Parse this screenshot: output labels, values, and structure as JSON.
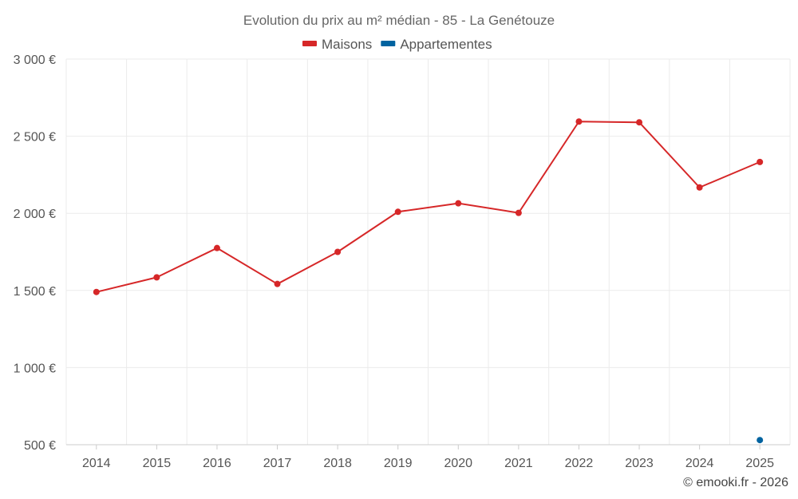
{
  "chart_data": {
    "type": "line",
    "title": "Evolution du prix au m² médian - 85 - La Genétouze",
    "categories": [
      "2014",
      "2015",
      "2016",
      "2017",
      "2018",
      "2019",
      "2020",
      "2021",
      "2022",
      "2023",
      "2024",
      "2025"
    ],
    "series": [
      {
        "name": "Maisons",
        "color": "#d62728",
        "values": [
          1490,
          1585,
          1775,
          1542,
          1750,
          2010,
          2065,
          2003,
          2595,
          2590,
          2168,
          2333
        ]
      },
      {
        "name": "Appartementes",
        "color": "#0063a0",
        "values": [
          null,
          null,
          null,
          null,
          null,
          null,
          null,
          null,
          null,
          null,
          null,
          530
        ]
      }
    ],
    "ylim": [
      500,
      3000
    ],
    "yticks": [
      500,
      1000,
      1500,
      2000,
      2500,
      3000
    ],
    "ytick_labels": [
      "500 €",
      "1 000 €",
      "1 500 €",
      "2 000 €",
      "2 500 €",
      "3 000 €"
    ],
    "xlabel": "",
    "ylabel": "",
    "grid": true,
    "legend_position": "top-center"
  },
  "credit": "© emooki.fr - 2026"
}
